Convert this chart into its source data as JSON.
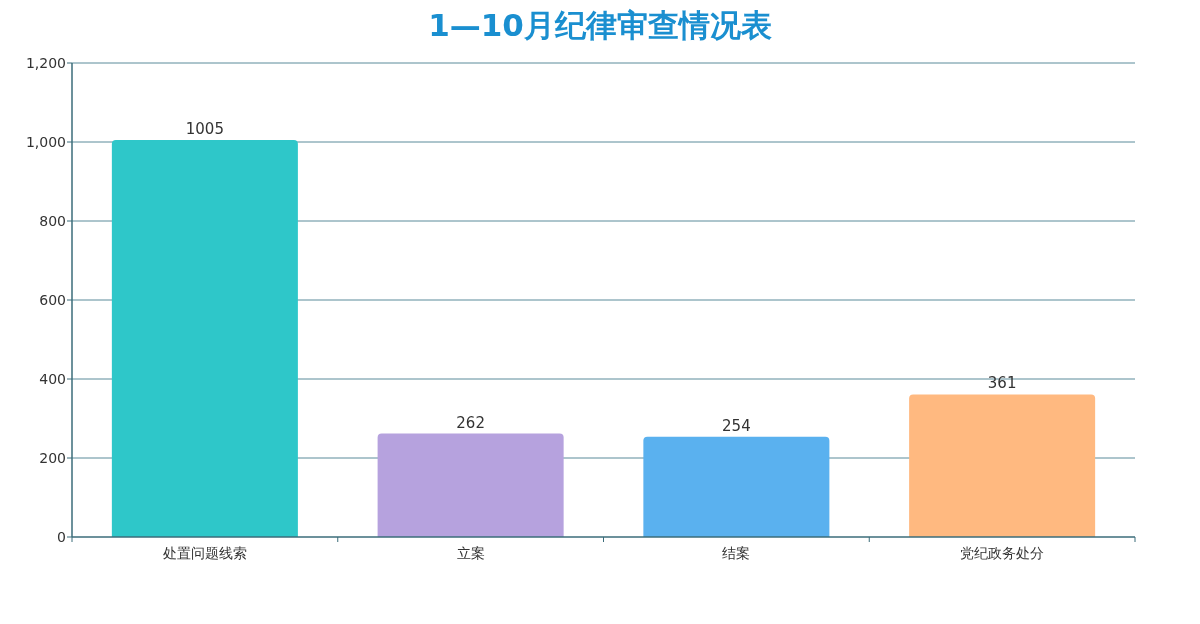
{
  "chart_data": {
    "type": "bar",
    "title": "1—10月纪律审查情况表",
    "categories": [
      "处置问题线索",
      "立案",
      "结案",
      "党纪政务处分"
    ],
    "values": [
      1005,
      262,
      254,
      361
    ],
    "colors": [
      "#2ec7c9",
      "#b6a2de",
      "#5ab1ef",
      "#ffb980"
    ],
    "ylim": [
      0,
      1200
    ],
    "yticks": [
      0,
      200,
      400,
      600,
      800,
      {
        "value": 1000,
        "label": "1,000"
      },
      {
        "value": 1200,
        "label": "1,200"
      }
    ],
    "grid": "y",
    "data_labels": true
  }
}
